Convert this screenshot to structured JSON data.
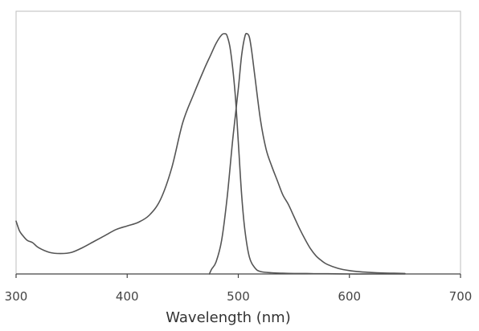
{
  "chart_data": {
    "type": "line",
    "title": "",
    "xlabel": "Wavelength (nm)",
    "ylabel": "",
    "xlim": [
      300,
      700
    ],
    "ylim": [
      0,
      100
    ],
    "xticks": [
      300,
      400,
      500,
      600,
      700
    ],
    "grid": false,
    "legend": "none",
    "line_color": "#555555",
    "series": [
      {
        "x": [
          300,
          303,
          306,
          310,
          315,
          320,
          330,
          340,
          350,
          360,
          370,
          380,
          390,
          400,
          410,
          420,
          430,
          440,
          450,
          460,
          470,
          475,
          480,
          485,
          488,
          490,
          493,
          497,
          500,
          503,
          506,
          510,
          515,
          520,
          530,
          540,
          550,
          560,
          570,
          580,
          600,
          620,
          650
        ],
        "y": [
          22,
          18,
          16,
          14,
          13,
          11,
          9,
          8.5,
          9,
          11,
          13.5,
          16,
          18.5,
          20,
          21.5,
          24.5,
          31,
          44,
          63,
          75,
          86,
          91,
          96,
          99.5,
          100,
          99,
          93,
          76,
          55,
          33,
          18,
          7,
          2.5,
          1,
          0.5,
          0.3,
          0.2,
          0.2,
          0.1,
          0.1,
          0,
          0,
          0
        ]
      },
      {
        "x": [
          474,
          476,
          480,
          485,
          490,
          495,
          500,
          503,
          506,
          508,
          510,
          512,
          515,
          520,
          525,
          530,
          535,
          540,
          545,
          550,
          555,
          560,
          565,
          570,
          575,
          580,
          590,
          600,
          610,
          620,
          630,
          640,
          650
        ],
        "y": [
          0,
          2,
          5,
          14,
          32,
          56,
          77,
          91,
          99,
          100,
          98.5,
          93,
          82,
          64,
          52,
          45,
          39,
          33,
          29,
          24,
          19,
          14.5,
          10.5,
          7.5,
          5.5,
          4,
          2.3,
          1.4,
          0.9,
          0.6,
          0.4,
          0.3,
          0.2
        ]
      }
    ]
  }
}
